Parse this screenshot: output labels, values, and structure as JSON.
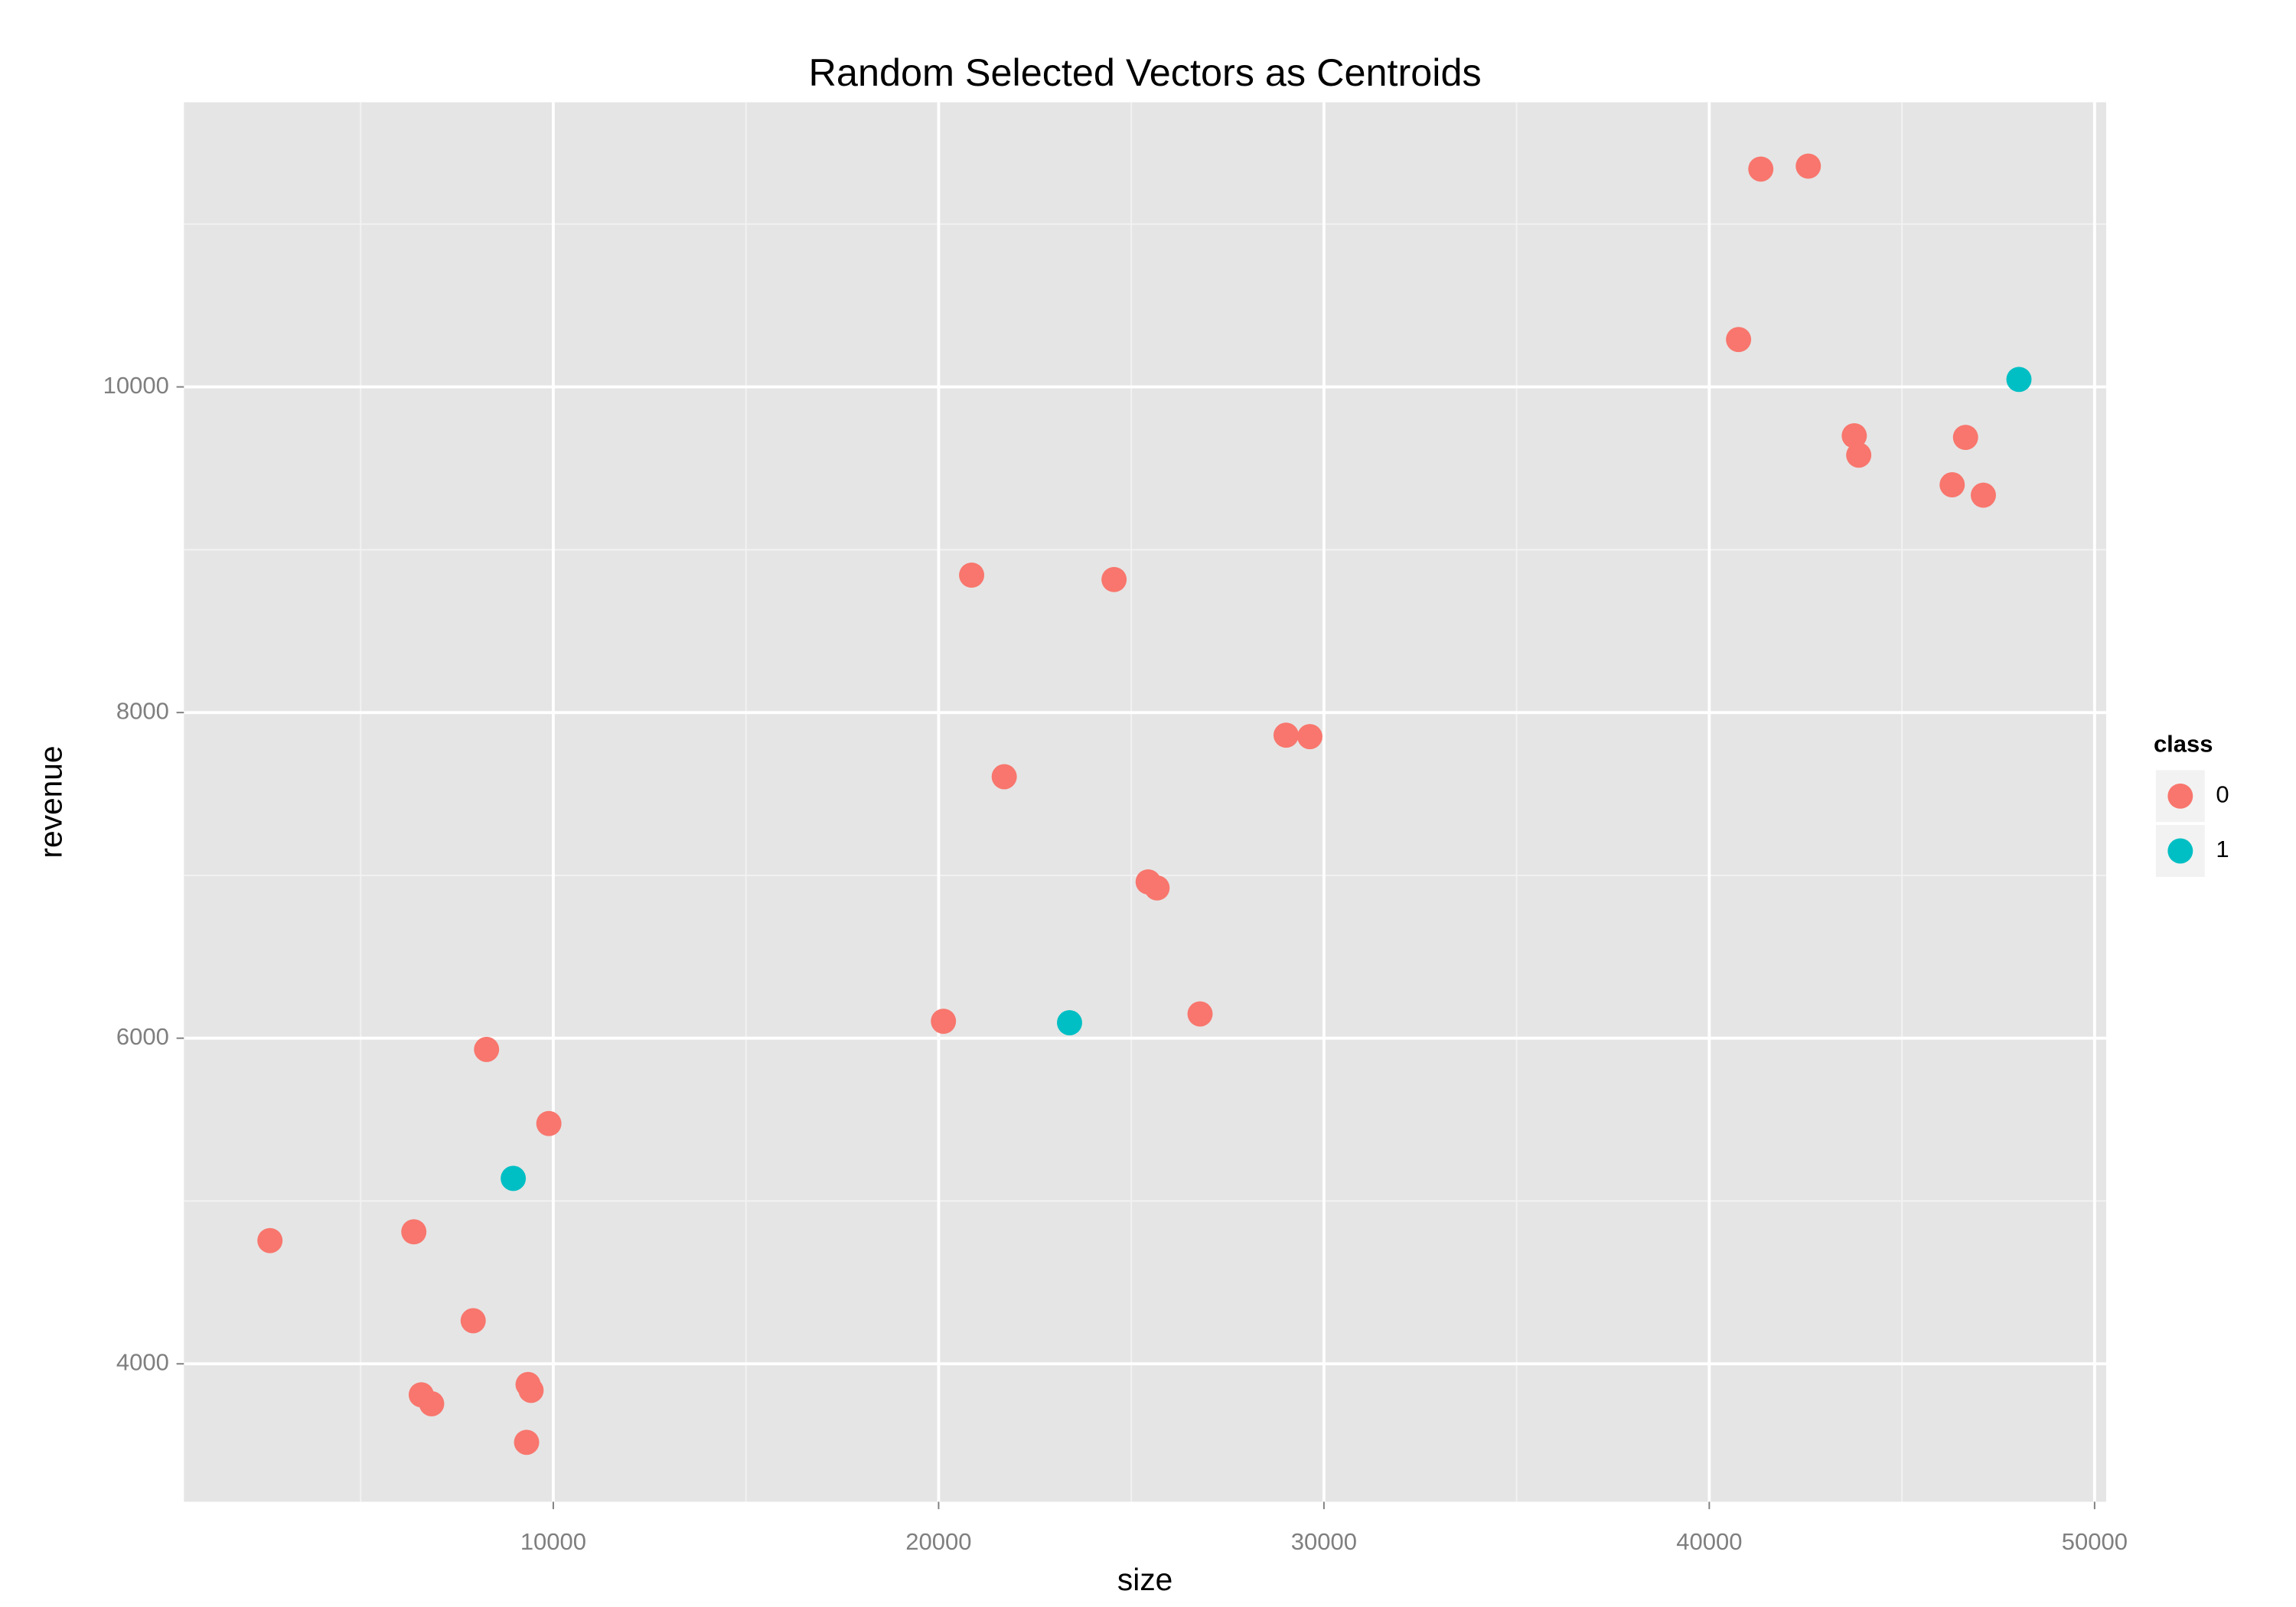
{
  "chart_data": {
    "type": "scatter",
    "title": "Random Selected Vectors as Centroids",
    "x_label": "size",
    "y_label": "revenue",
    "legend_title": "class",
    "legend_position": "right",
    "grid": true,
    "xlim": [
      414,
      50300
    ],
    "ylim": [
      3153,
      11748
    ],
    "xticks": [
      10000,
      20000,
      30000,
      40000,
      50000
    ],
    "yticks": [
      4000,
      6000,
      8000,
      10000
    ],
    "minor_xticks": [
      5000,
      15000,
      25000,
      35000,
      45000
    ],
    "minor_yticks": [
      5000,
      7000,
      9000,
      11000
    ],
    "series": [
      {
        "name": "0",
        "color": "#F8766D",
        "x": [
          2647,
          6381,
          8268,
          9885,
          7921,
          6574,
          6843,
          9346,
          9423,
          9307,
          20125,
          20857,
          24553,
          21703,
          25438,
          25669,
          26785,
          29018,
          29634,
          41338,
          42570,
          40760,
          43763,
          43879,
          46651,
          46304,
          47113
        ],
        "values": [
          4757,
          4811,
          5931,
          5476,
          4265,
          3810,
          3755,
          3873,
          3837,
          3518,
          6104,
          8844,
          8817,
          7606,
          6960,
          6923,
          6149,
          7861,
          7852,
          11338,
          11356,
          10291,
          9700,
          9581,
          9690,
          9399,
          9335
        ]
      },
      {
        "name": "1",
        "color": "#00BFC4",
        "x": [
          8961,
          23398,
          48037
        ],
        "values": [
          5139,
          6095,
          10046
        ]
      }
    ]
  }
}
